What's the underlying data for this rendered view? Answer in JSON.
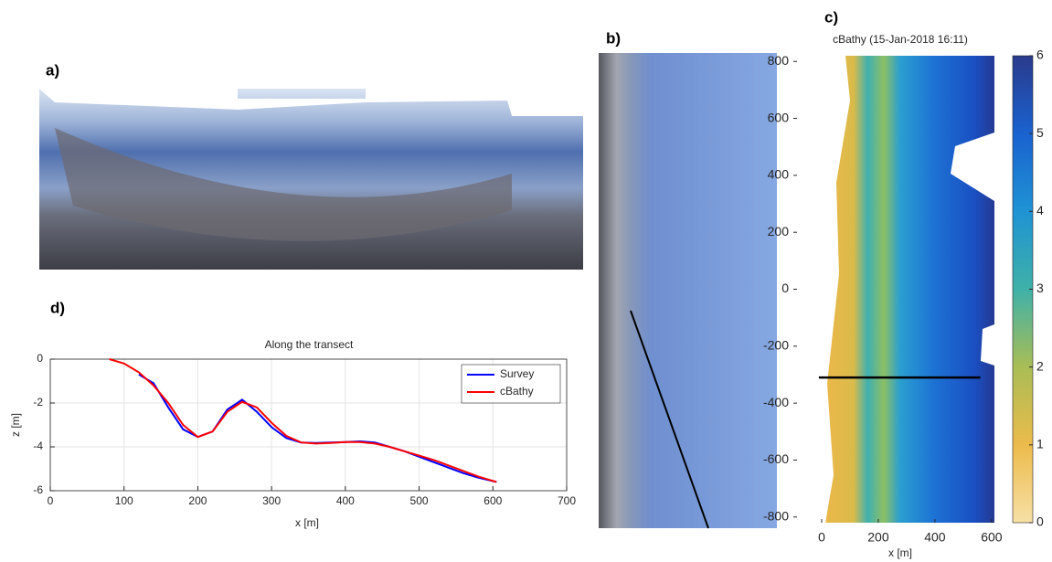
{
  "panel_labels": [
    "a)",
    "b)",
    "c)",
    "d)"
  ],
  "chart_data": [
    {
      "type": "line",
      "title": "Along the transect",
      "xlabel": "x [m]",
      "ylabel": "z [m]",
      "xlim": [
        0,
        700
      ],
      "xticks": [
        0,
        100,
        200,
        300,
        400,
        500,
        600,
        700
      ],
      "ylim": [
        -6,
        0
      ],
      "yticks": [
        -6,
        -4,
        -2,
        0
      ],
      "grid": true,
      "legend": "upper right",
      "x": [
        80,
        100,
        120,
        140,
        160,
        180,
        200,
        220,
        240,
        260,
        280,
        300,
        320,
        340,
        360,
        380,
        400,
        420,
        440,
        460,
        480,
        500,
        520,
        540,
        560,
        580,
        605
      ],
      "series": [
        {
          "name": "Survey",
          "color": "#0000ff",
          "values": [
            null,
            null,
            -0.7,
            -1.1,
            -2.2,
            -3.2,
            -3.55,
            -3.3,
            -2.3,
            -1.85,
            -2.4,
            -3.1,
            -3.6,
            -3.8,
            -3.82,
            -3.8,
            -3.78,
            -3.75,
            -3.8,
            -4.0,
            -4.2,
            -4.45,
            -4.7,
            -4.95,
            -5.2,
            -5.4,
            -5.6
          ]
        },
        {
          "name": "cBathy",
          "color": "#ff0000",
          "values": [
            0,
            -0.2,
            -0.6,
            -1.2,
            -2.0,
            -3.0,
            -3.55,
            -3.3,
            -2.4,
            -1.95,
            -2.2,
            -2.9,
            -3.5,
            -3.8,
            -3.85,
            -3.82,
            -3.78,
            -3.78,
            -3.85,
            -4.0,
            -4.2,
            -4.4,
            -4.6,
            -4.85,
            -5.1,
            -5.35,
            -5.6
          ]
        }
      ]
    },
    {
      "type": "heatmap",
      "title": "cBathy (15-Jan-2018 16:11)",
      "xlabel": "x [m]",
      "xlim": [
        -100,
        610
      ],
      "xticks": [
        0,
        200,
        400,
        600
      ],
      "ylim": [
        -820,
        820
      ],
      "yticks": [
        -800,
        -600,
        -400,
        -200,
        0,
        200,
        400,
        600,
        800
      ],
      "transect": {
        "x": [
          -10,
          560
        ],
        "y": -310
      },
      "colorbar": {
        "lim": [
          0,
          6
        ],
        "ticks": [
          0,
          1,
          2,
          3,
          4,
          5,
          6
        ],
        "colormap": [
          "#f7e0a6",
          "#ecbb4c",
          "#a9bd55",
          "#3fb1a8",
          "#1f93d4",
          "#1a62cf",
          "#2a3a8c"
        ]
      }
    }
  ]
}
